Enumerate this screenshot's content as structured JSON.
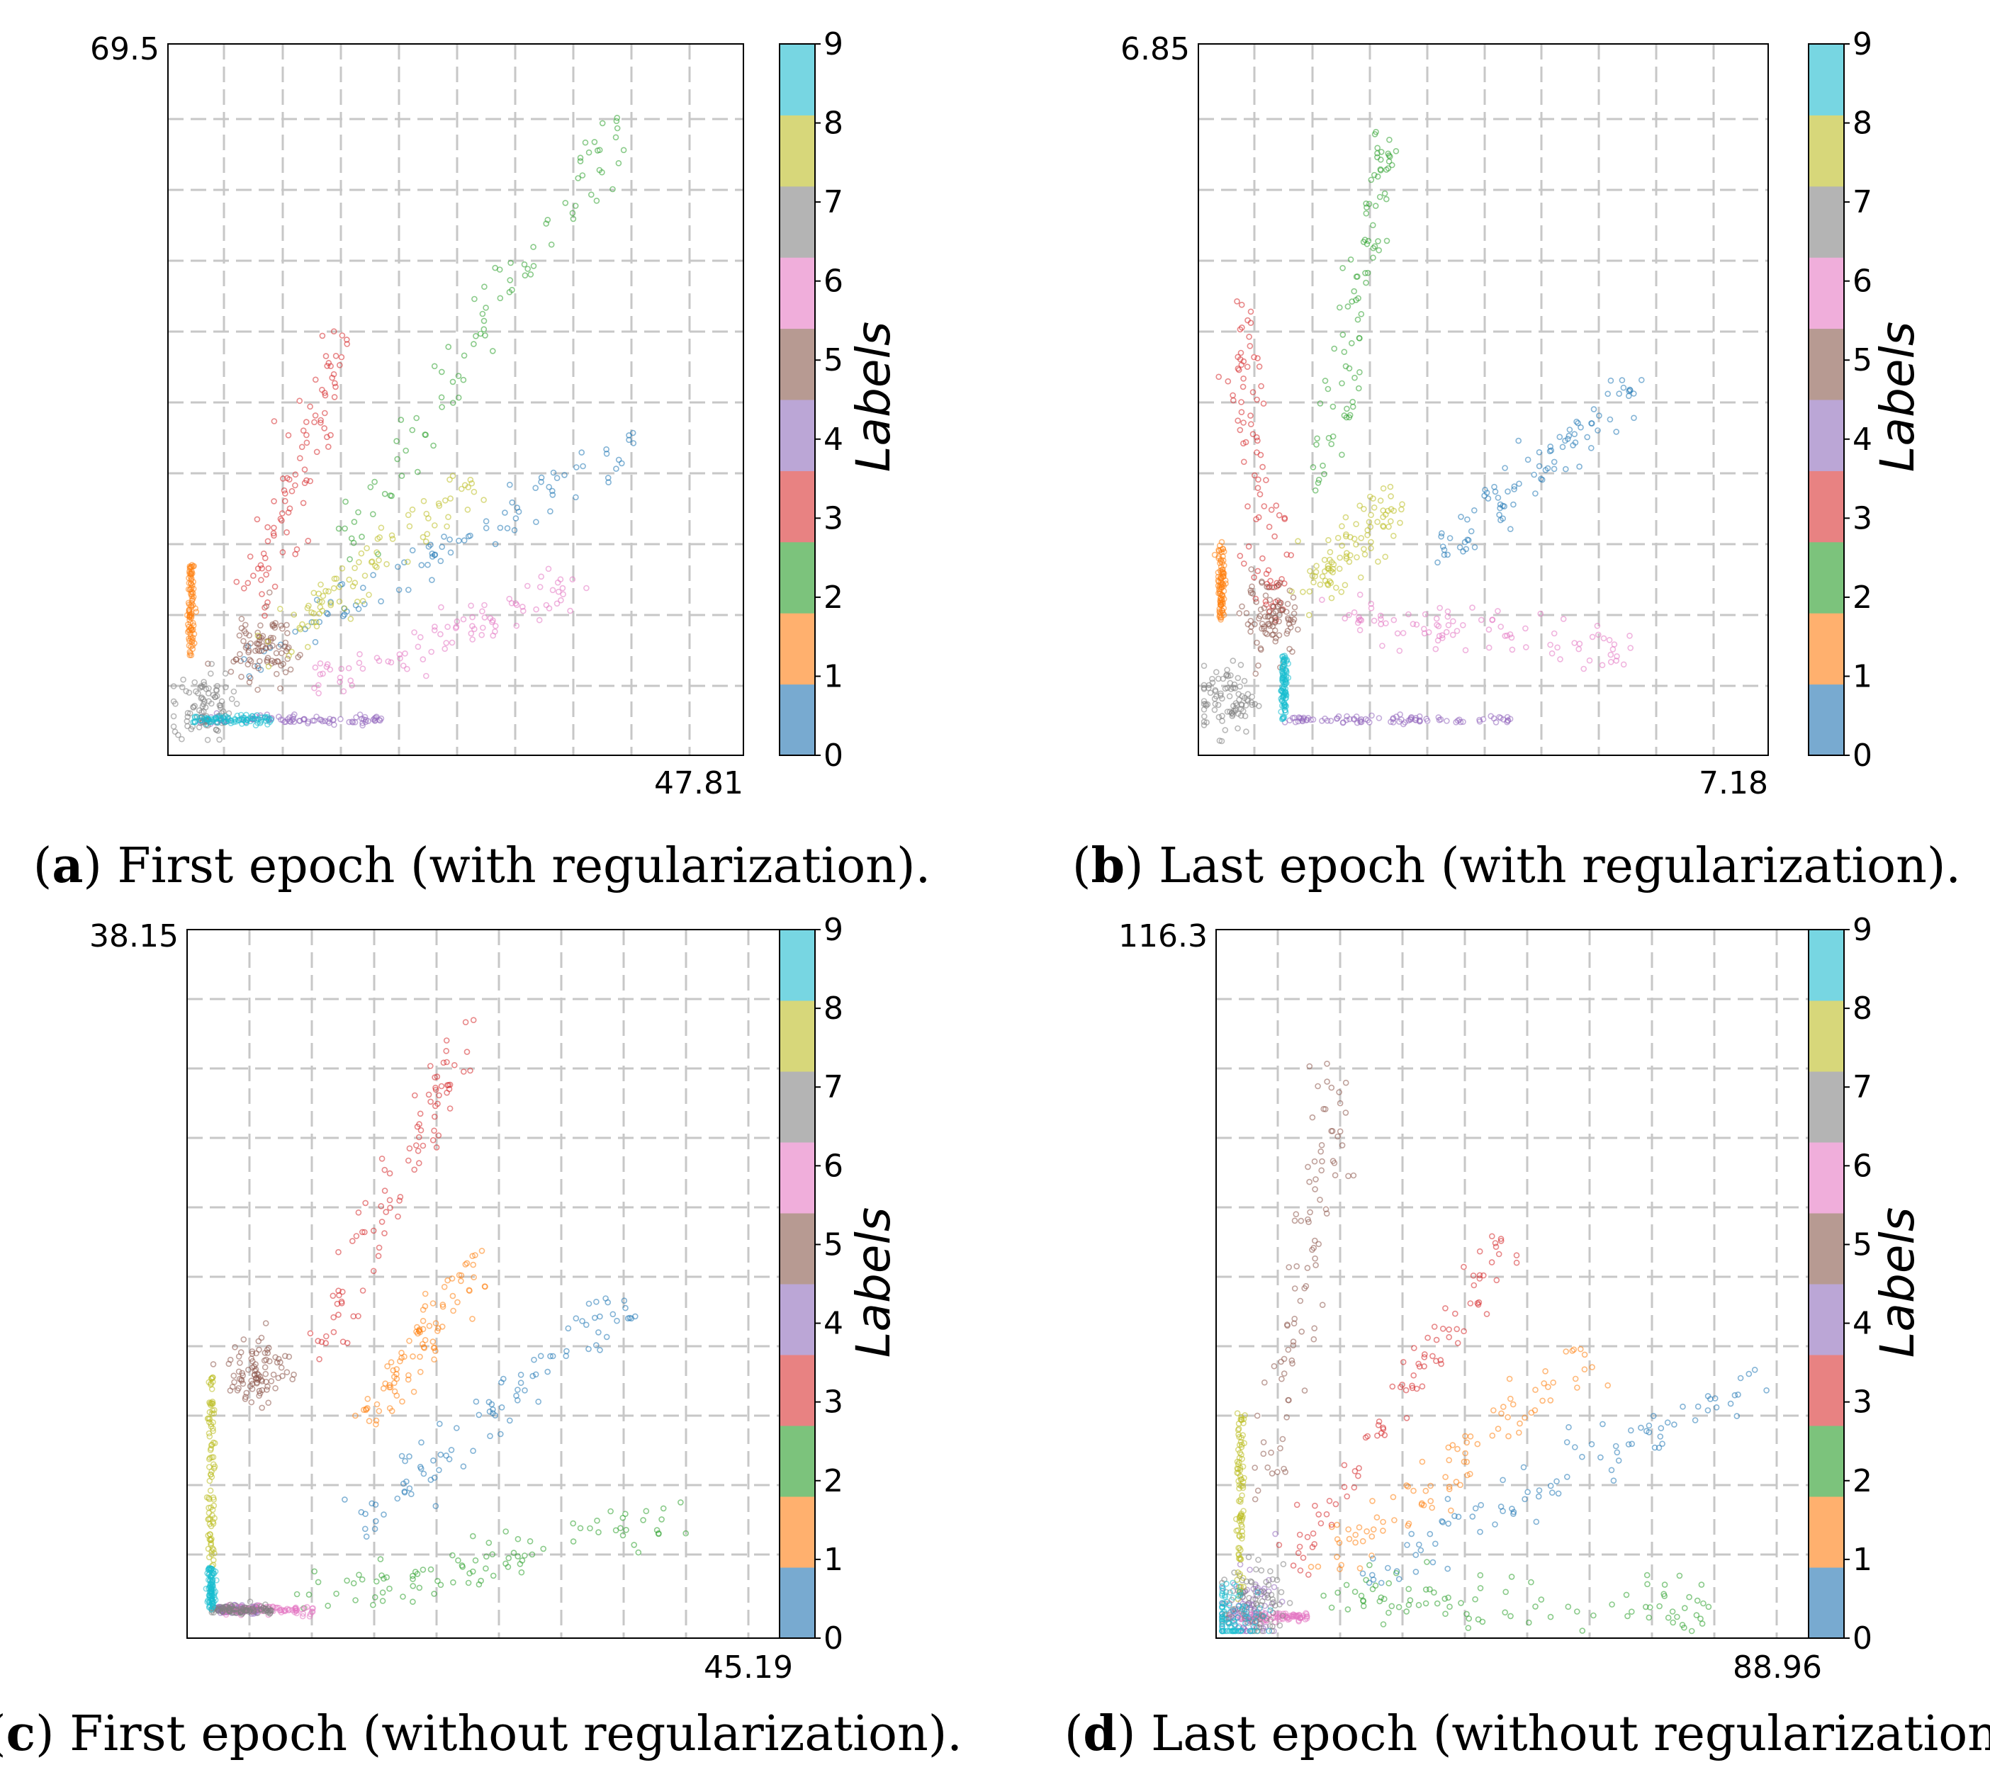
{
  "figure": {
    "colorbar_colors": [
      "#78aad0",
      "#ffb06e",
      "#7cc37c",
      "#e88282",
      "#bba6d6",
      "#b79a92",
      "#f0aedb",
      "#b4b4b4",
      "#d7d77a",
      "#77d6e2"
    ],
    "class_colors": [
      "#1f77b4",
      "#ff7f0e",
      "#2ca02c",
      "#d62728",
      "#9467bd",
      "#8c564b",
      "#e377c2",
      "#7f7f7f",
      "#bcbd22",
      "#17becf"
    ]
  },
  "chart_data": [
    {
      "type": "scatter",
      "panel": "a",
      "caption_letter": "a",
      "caption_text": "First epoch (with regularization).",
      "y_max_label": "69.5",
      "x_max_label": "47.81",
      "colorbar": {
        "label": "Labels",
        "ticks": [
          "0",
          "1",
          "2",
          "3",
          "4",
          "5",
          "6",
          "7",
          "8",
          "9"
        ]
      },
      "grid": true,
      "approx_clusters": [
        {
          "label": 0,
          "description": "diagonal band",
          "from": [
            0.1,
            0.12
          ],
          "to": [
            0.82,
            0.44
          ]
        },
        {
          "label": 1,
          "description": "vertical line near x-axis start",
          "x": 0.04,
          "y_range": [
            0.14,
            0.27
          ]
        },
        {
          "label": 2,
          "description": "steep diagonal",
          "from": [
            0.3,
            0.28
          ],
          "to": [
            0.8,
            0.9
          ]
        },
        {
          "label": 3,
          "description": "steep band",
          "from": [
            0.15,
            0.22
          ],
          "to": [
            0.3,
            0.58
          ]
        },
        {
          "label": 4,
          "description": "horizontal line on x-axis",
          "y": 0.05,
          "x_range": [
            0.05,
            0.38
          ]
        },
        {
          "label": 5,
          "description": "small blob",
          "center": [
            0.17,
            0.15
          ]
        },
        {
          "label": 6,
          "description": "shallow band",
          "from": [
            0.25,
            0.1
          ],
          "to": [
            0.7,
            0.24
          ]
        },
        {
          "label": 7,
          "description": "small cluster at origin",
          "center": [
            0.06,
            0.07
          ]
        },
        {
          "label": 8,
          "description": "diagonal",
          "from": [
            0.18,
            0.15
          ],
          "to": [
            0.52,
            0.38
          ]
        },
        {
          "label": 9,
          "description": "line near origin",
          "y": 0.05,
          "x_range": [
            0.04,
            0.18
          ]
        }
      ]
    },
    {
      "type": "scatter",
      "panel": "b",
      "caption_letter": "b",
      "caption_text": "Last epoch (with regularization).",
      "y_max_label": "6.85",
      "x_max_label": "7.18",
      "colorbar": {
        "label": "Labels",
        "ticks": [
          "0",
          "1",
          "2",
          "3",
          "4",
          "5",
          "6",
          "7",
          "8",
          "9"
        ]
      },
      "grid": true,
      "approx_clusters": [
        {
          "label": 0,
          "description": "diagonal band",
          "from": [
            0.42,
            0.28
          ],
          "to": [
            0.78,
            0.53
          ]
        },
        {
          "label": 1,
          "description": "vertical line",
          "x": 0.04,
          "y_range": [
            0.19,
            0.3
          ]
        },
        {
          "label": 2,
          "description": "steep band",
          "from": [
            0.22,
            0.38
          ],
          "to": [
            0.33,
            0.86
          ]
        },
        {
          "label": 3,
          "description": "steep band tilted left",
          "from": [
            0.13,
            0.2
          ],
          "to": [
            0.07,
            0.62
          ]
        },
        {
          "label": 4,
          "description": "horizontal line on x-axis",
          "y": 0.05,
          "x_range": [
            0.15,
            0.55
          ]
        },
        {
          "label": 5,
          "description": "tight blob",
          "center": [
            0.13,
            0.19
          ]
        },
        {
          "label": 6,
          "description": "flat band",
          "from": [
            0.26,
            0.19
          ],
          "to": [
            0.75,
            0.15
          ]
        },
        {
          "label": 7,
          "description": "small cluster at origin",
          "center": [
            0.05,
            0.08
          ]
        },
        {
          "label": 8,
          "description": "short diagonal",
          "from": [
            0.2,
            0.23
          ],
          "to": [
            0.35,
            0.37
          ]
        },
        {
          "label": 9,
          "description": "short vertical",
          "x": 0.15,
          "y_range": [
            0.05,
            0.14
          ]
        }
      ]
    },
    {
      "type": "scatter",
      "panel": "c",
      "caption_letter": "c",
      "caption_text": "First epoch (without regularization).",
      "y_max_label": "38.15",
      "x_max_label": "45.19",
      "colorbar": {
        "label": "Labels",
        "ticks": [
          "0",
          "1",
          "2",
          "3",
          "4",
          "5",
          "6",
          "7",
          "8",
          "9"
        ]
      },
      "grid": true,
      "approx_clusters": [
        {
          "label": 0,
          "description": "diagonal band",
          "from": [
            0.28,
            0.15
          ],
          "to": [
            0.72,
            0.48
          ]
        },
        {
          "label": 1,
          "description": "diagonal",
          "from": [
            0.3,
            0.32
          ],
          "to": [
            0.48,
            0.53
          ]
        },
        {
          "label": 2,
          "description": "diffuse band along x-axis",
          "from": [
            0.2,
            0.04
          ],
          "to": [
            0.8,
            0.18
          ]
        },
        {
          "label": 3,
          "description": "steep band",
          "from": [
            0.22,
            0.4
          ],
          "to": [
            0.46,
            0.85
          ]
        },
        {
          "label": 4,
          "description": "line on x-axis",
          "y": 0.04,
          "x_range": [
            0.05,
            0.12
          ]
        },
        {
          "label": 5,
          "description": "diffuse cloud",
          "center": [
            0.12,
            0.38
          ]
        },
        {
          "label": 6,
          "description": "short line on x-axis",
          "y": 0.04,
          "x_range": [
            0.06,
            0.22
          ]
        },
        {
          "label": 7,
          "description": "line on x-axis",
          "y": 0.04,
          "x_range": [
            0.04,
            0.14
          ]
        },
        {
          "label": 8,
          "description": "vertical line",
          "x": 0.04,
          "y_range": [
            0.1,
            0.38
          ]
        },
        {
          "label": 9,
          "description": "short vertical near origin",
          "x": 0.04,
          "y_range": [
            0.04,
            0.1
          ]
        }
      ]
    },
    {
      "type": "scatter",
      "panel": "d",
      "caption_letter": "d",
      "caption_text": "Last epoch (without regularization).",
      "y_max_label": "116.3",
      "x_max_label": "88.96",
      "colorbar": {
        "label": "Labels",
        "ticks": [
          "0",
          "1",
          "2",
          "3",
          "4",
          "5",
          "6",
          "7",
          "8",
          "9"
        ]
      },
      "grid": true,
      "approx_clusters": [
        {
          "label": 0,
          "description": "long diagonal band",
          "from": [
            0.22,
            0.08
          ],
          "to": [
            0.92,
            0.38
          ]
        },
        {
          "label": 1,
          "description": "diagonal",
          "from": [
            0.18,
            0.1
          ],
          "to": [
            0.62,
            0.41
          ]
        },
        {
          "label": 2,
          "description": "flat band near x-axis",
          "from": [
            0.18,
            0.06
          ],
          "to": [
            0.82,
            0.04
          ]
        },
        {
          "label": 3,
          "description": "steep band",
          "from": [
            0.12,
            0.1
          ],
          "to": [
            0.48,
            0.56
          ]
        },
        {
          "label": 4,
          "description": "tiny blob",
          "center": [
            0.05,
            0.04
          ]
        },
        {
          "label": 5,
          "description": "steep band",
          "from": [
            0.08,
            0.2
          ],
          "to": [
            0.2,
            0.8
          ]
        },
        {
          "label": 6,
          "description": "short line on x-axis",
          "y": 0.03,
          "x_range": [
            0.04,
            0.15
          ]
        },
        {
          "label": 7,
          "description": "small cluster at origin",
          "center": [
            0.06,
            0.05
          ]
        },
        {
          "label": 8,
          "description": "vertical line",
          "x": 0.04,
          "y_range": [
            0.05,
            0.32
          ]
        },
        {
          "label": 9,
          "description": "tiny blob at origin",
          "center": [
            0.03,
            0.03
          ]
        }
      ]
    }
  ]
}
